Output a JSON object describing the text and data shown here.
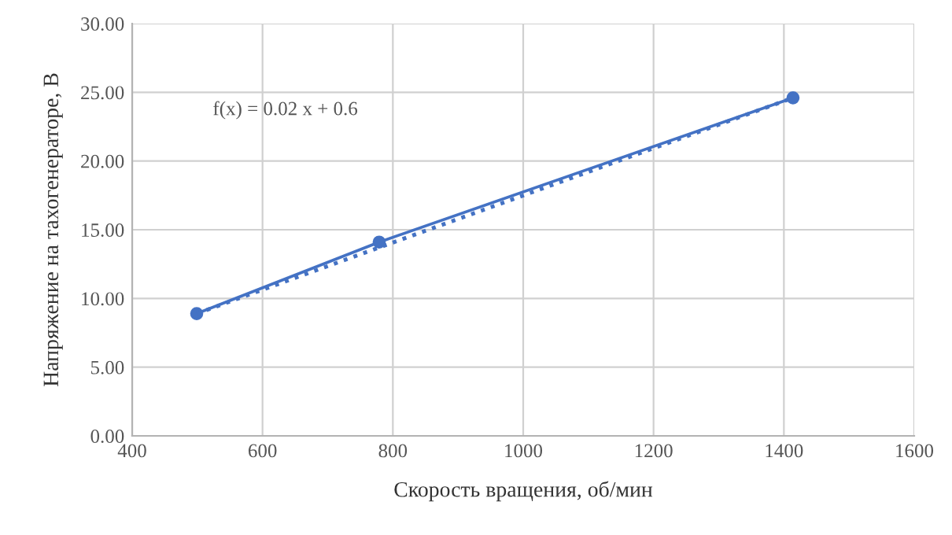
{
  "chart_data": {
    "type": "line",
    "xlabel": "Скорость вращения, об/мин",
    "ylabel": "Напряжение на тахогенераторе, В",
    "x": [
      499,
      779,
      1414
    ],
    "series": [
      {
        "color": "#4472c4",
        "values": [
          8.9,
          14.1,
          24.6
        ],
        "marker": "circle",
        "line_style": "solid"
      },
      {
        "type": "line",
        "color": "#4472c4",
        "x": [
          499,
          1414
        ],
        "values": [
          8.9,
          24.6
        ],
        "marker": "none",
        "line_style": "dotted"
      }
    ],
    "annotations": [
      "f(x) = 0.02 x + 0.6"
    ],
    "xlim": [
      400,
      1600
    ],
    "xticks": [
      400,
      600,
      800,
      1000,
      1200,
      1400,
      1600
    ],
    "ylim": [
      0,
      30
    ],
    "yticks": [
      {
        "value": 0,
        "label": "0.00"
      },
      {
        "value": 5,
        "label": "5.00"
      },
      {
        "value": 10,
        "label": "10.00"
      },
      {
        "value": 15,
        "label": "15.00"
      },
      {
        "value": 20,
        "label": "20.00"
      },
      {
        "value": 25,
        "label": "25.00"
      },
      {
        "value": 30,
        "label": "30.00"
      }
    ],
    "grid": true,
    "legend": false
  }
}
